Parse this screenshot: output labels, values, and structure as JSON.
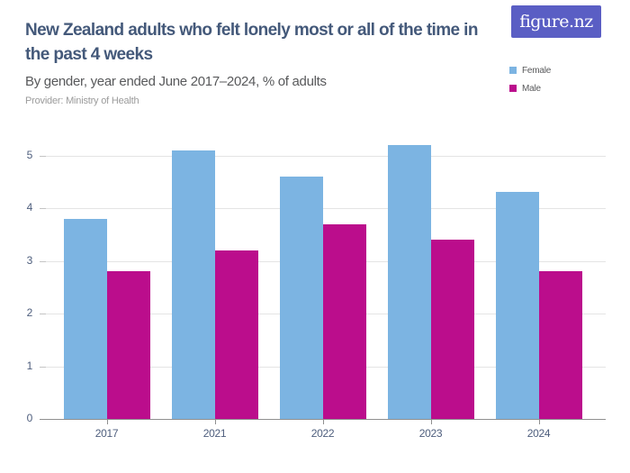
{
  "header": {
    "title": "New Zealand adults who felt lonely most or all of the time in the past 4 weeks",
    "subtitle": "By gender, year ended June 2017–2024, % of adults",
    "provider": "Provider: Ministry of Health",
    "logo_text": "figure.nz"
  },
  "colors": {
    "female": "#7cb4e2",
    "male": "#bb0d8c",
    "logo_background": "#5a5ec4",
    "title_text": "#44597a",
    "axis_text": "#4e5e7d",
    "gridline": "#e4e4e4",
    "axis_line": "#8f8f8f"
  },
  "legend": {
    "items": [
      {
        "label": "Female",
        "color": "#7cb4e2"
      },
      {
        "label": "Male",
        "color": "#bb0d8c"
      }
    ]
  },
  "chart_data": {
    "type": "bar",
    "title": "New Zealand adults who felt lonely most or all of the time in the past 4 weeks",
    "subtitle": "By gender, year ended June 2017–2024, % of adults",
    "categories": [
      "2017",
      "2021",
      "2022",
      "2023",
      "2024"
    ],
    "series": [
      {
        "name": "Female",
        "color": "#7cb4e2",
        "values": [
          3.8,
          5.1,
          4.6,
          5.2,
          4.3
        ]
      },
      {
        "name": "Male",
        "color": "#bb0d8c",
        "values": [
          2.8,
          3.2,
          3.7,
          3.4,
          2.8
        ]
      }
    ],
    "xlabel": "",
    "ylabel": "",
    "ylim": [
      0,
      5.4
    ],
    "yticks": [
      0,
      1,
      2,
      3,
      4,
      5
    ],
    "grid": "horizontal",
    "legend_position": "top-right"
  }
}
